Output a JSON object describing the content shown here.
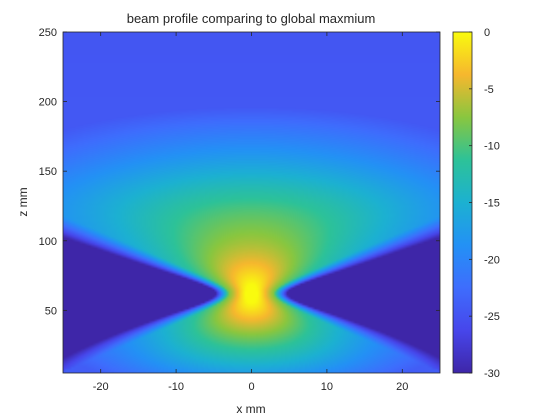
{
  "chart_data": {
    "type": "heatmap",
    "title": "beam profile comparing to global maxmium",
    "xlabel": "x mm",
    "ylabel": "z mm",
    "xlim": [
      -25,
      25
    ],
    "ylim": [
      5,
      250
    ],
    "xticks": [
      "-20",
      "-10",
      "0",
      "10",
      "20"
    ],
    "yticks": [
      "50",
      "100",
      "150",
      "200",
      "250"
    ],
    "grid": false,
    "colormap": "parula",
    "clim": [
      -30,
      0
    ],
    "colorbar": {
      "label": "",
      "ticks": [
        "0",
        "-5",
        "-10",
        "-15",
        "-20",
        "-25",
        "-30"
      ]
    },
    "focus": {
      "x": 0,
      "z": 62,
      "value": 0
    },
    "colors": {
      "background_floor": "#3e27a8",
      "peak": "#f9fb0e"
    }
  }
}
